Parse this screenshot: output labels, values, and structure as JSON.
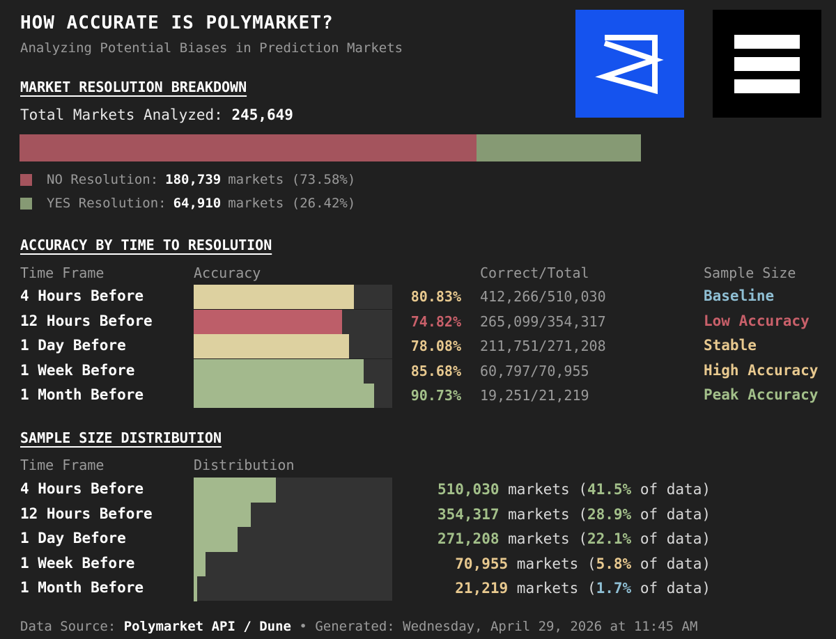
{
  "header": {
    "title": "HOW ACCURATE IS POLYMARKET?",
    "subtitle": "Analyzing Potential Biases in Prediction Markets"
  },
  "resolution": {
    "section_title": "MARKET RESOLUTION BREAKDOWN",
    "total_label": "Total Markets Analyzed:",
    "total_value": "245,649",
    "no": {
      "label": "NO Resolution:",
      "count": "180,739",
      "unit": "markets",
      "pct_text": "(73.58%)",
      "pct": 73.58,
      "color": "#a4545d"
    },
    "yes": {
      "label": "YES Resolution:",
      "count": "64,910",
      "unit": "markets",
      "pct_text": "(26.42%)",
      "pct": 26.42,
      "color": "#869a74"
    }
  },
  "accuracy": {
    "section_title": "ACCURACY BY TIME TO RESOLUTION",
    "headers": {
      "timeframe": "Time Frame",
      "accuracy": "Accuracy",
      "ratio": "Correct/Total",
      "sample": "Sample Size"
    },
    "rows": [
      {
        "label": "4 Hours Before",
        "value": 80.83,
        "pct_text": "80.83%",
        "ratio": "412,266/510,030",
        "tag": "Baseline",
        "bar_color": "#ddd1a0",
        "pct_color": "#e8c98f",
        "tag_color": "#8fbfd4"
      },
      {
        "label": "12 Hours Before",
        "value": 74.82,
        "pct_text": "74.82%",
        "ratio": "265,099/354,317",
        "tag": "Low Accuracy",
        "bar_color": "#bd5e69",
        "pct_color": "#c9606a",
        "tag_color": "#c9606a"
      },
      {
        "label": "1 Day Before",
        "value": 78.08,
        "pct_text": "78.08%",
        "ratio": "211,751/271,208",
        "tag": "Stable",
        "bar_color": "#ddd1a0",
        "pct_color": "#e8c98f",
        "tag_color": "#e8c98f"
      },
      {
        "label": "1 Week Before",
        "value": 85.68,
        "pct_text": "85.68%",
        "ratio": "60,797/70,955",
        "tag": "High Accuracy",
        "bar_color": "#a3b98d",
        "pct_color": "#e8c98f",
        "tag_color": "#e8c98f"
      },
      {
        "label": "1 Month Before",
        "value": 90.73,
        "pct_text": "90.73%",
        "ratio": "19,251/21,219",
        "tag": "Peak Accuracy",
        "bar_color": "#a3b98d",
        "pct_color": "#a3c08a",
        "tag_color": "#a3c08a"
      }
    ]
  },
  "distribution": {
    "section_title": "SAMPLE SIZE DISTRIBUTION",
    "headers": {
      "timeframe": "Time Frame",
      "distribution": "Distribution"
    },
    "unit": "markets",
    "of_data": "of data)",
    "rows": [
      {
        "label": "4 Hours Before",
        "count": "510,030",
        "share": 41.5,
        "share_text": "41.5%",
        "count_color": "#a3c08a",
        "share_color": "#a3c08a"
      },
      {
        "label": "12 Hours Before",
        "count": "354,317",
        "share": 28.9,
        "share_text": "28.9%",
        "count_color": "#a3c08a",
        "share_color": "#a3c08a"
      },
      {
        "label": "1 Day Before",
        "count": "271,208",
        "share": 22.1,
        "share_text": "22.1%",
        "count_color": "#a3c08a",
        "share_color": "#a3c08a"
      },
      {
        "label": "1 Week Before",
        "count": "70,955",
        "share": 5.8,
        "share_text": "5.8%",
        "count_color": "#e8c98f",
        "share_color": "#e8c98f"
      },
      {
        "label": "1 Month Before",
        "count": "21,219",
        "share": 1.7,
        "share_text": "1.7%",
        "count_color": "#e8c98f",
        "share_color": "#8fbfd4"
      }
    ],
    "bar_color": "#a3b98d"
  },
  "footer": {
    "source_label": "Data Source:",
    "source_value": "Polymarket API / Dune",
    "separator": "•",
    "generated": "Generated: Wednesday, April 29, 2026 at 11:45 AM"
  },
  "logos": {
    "left_icon": "polymarket-logo-icon",
    "right_icon": "three-bars-logo-icon"
  },
  "chart_data": [
    {
      "type": "bar",
      "title": "MARKET RESOLUTION BREAKDOWN",
      "categories": [
        "NO Resolution",
        "YES Resolution"
      ],
      "values": [
        180739,
        64910
      ],
      "percentages": [
        73.58,
        26.42
      ]
    },
    {
      "type": "bar",
      "title": "ACCURACY BY TIME TO RESOLUTION",
      "categories": [
        "4 Hours Before",
        "12 Hours Before",
        "1 Day Before",
        "1 Week Before",
        "1 Month Before"
      ],
      "values": [
        80.83,
        74.82,
        78.08,
        85.68,
        90.73
      ],
      "correct": [
        412266,
        265099,
        211751,
        60797,
        19251
      ],
      "total": [
        510030,
        354317,
        271208,
        70955,
        21219
      ]
    },
    {
      "type": "bar",
      "title": "SAMPLE SIZE DISTRIBUTION",
      "categories": [
        "4 Hours Before",
        "12 Hours Before",
        "1 Day Before",
        "1 Week Before",
        "1 Month Before"
      ],
      "values": [
        510030,
        354317,
        271208,
        70955,
        21219
      ],
      "percentages": [
        41.5,
        28.9,
        22.1,
        5.8,
        1.7
      ]
    }
  ]
}
